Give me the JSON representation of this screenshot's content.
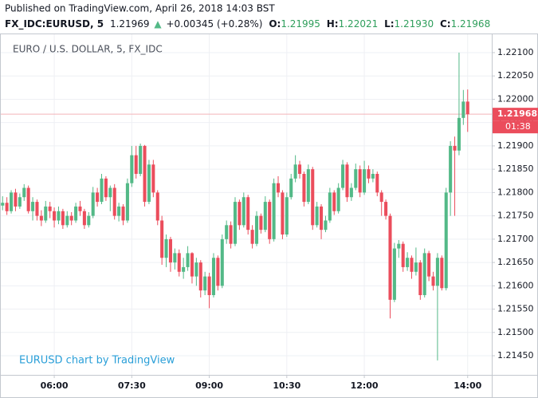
{
  "chart_data": {
    "type": "candlestick",
    "published": "Published on TradingView.com, April 26, 2018 14:03 BST",
    "symbol": "FX_IDC:EURUSD, 5",
    "last": "1.21969",
    "change_arrow": "▲",
    "change": "+0.00345 (+0.28%)",
    "info": [
      {
        "label": "O:",
        "value": "1.21995"
      },
      {
        "label": "H:",
        "value": "1.22021"
      },
      {
        "label": "L:",
        "value": "1.21930"
      },
      {
        "label": "C:",
        "value": "1.21968"
      }
    ],
    "title": "EURO / U.S. DOLLAR, 5, FX_IDC",
    "watermark": "EURUSD chart by TradingView",
    "countdown": "01:38",
    "up_color": "#53b987",
    "down_color": "#eb4d5c",
    "last_line_color": "#f3b3b9",
    "grid": true,
    "xlim": [
      "04:57",
      "14:28"
    ],
    "xticks": [
      "06:00",
      "07:30",
      "09:00",
      "10:30",
      "12:00",
      "14:00"
    ],
    "ylim": [
      1.21409,
      1.22141
    ],
    "yticks": [
      {
        "value": 1.2145,
        "label": "1.21450"
      },
      {
        "value": 1.215,
        "label": "1.21500"
      },
      {
        "value": 1.2155,
        "label": "1.21550"
      },
      {
        "value": 1.216,
        "label": "1.21600"
      },
      {
        "value": 1.2165,
        "label": "1.21650"
      },
      {
        "value": 1.217,
        "label": "1.21700"
      },
      {
        "value": 1.2175,
        "label": "1.21750"
      },
      {
        "value": 1.218,
        "label": "1.21800"
      },
      {
        "value": 1.2185,
        "label": "1.21850"
      },
      {
        "value": 1.219,
        "label": "1.21900"
      },
      {
        "value": 1.2195,
        "label": "1.21950"
      },
      {
        "value": 1.22,
        "label": "1.22000"
      },
      {
        "value": 1.2205,
        "label": "1.22050"
      },
      {
        "value": 1.221,
        "label": "1.22100"
      }
    ],
    "x": [
      "05:00",
      "05:05",
      "05:10",
      "05:15",
      "05:20",
      "05:25",
      "05:30",
      "05:35",
      "05:40",
      "05:45",
      "05:50",
      "05:55",
      "06:00",
      "06:05",
      "06:10",
      "06:15",
      "06:20",
      "06:25",
      "06:30",
      "06:35",
      "06:40",
      "06:45",
      "06:50",
      "06:55",
      "07:00",
      "07:05",
      "07:10",
      "07:15",
      "07:20",
      "07:25",
      "07:30",
      "07:35",
      "07:40",
      "07:45",
      "07:50",
      "07:55",
      "08:00",
      "08:05",
      "08:10",
      "08:15",
      "08:20",
      "08:25",
      "08:30",
      "08:35",
      "08:40",
      "08:45",
      "08:50",
      "08:55",
      "09:00",
      "09:05",
      "09:10",
      "09:15",
      "09:20",
      "09:25",
      "09:30",
      "09:35",
      "09:40",
      "09:45",
      "09:50",
      "09:55",
      "10:00",
      "10:05",
      "10:10",
      "10:15",
      "10:20",
      "10:25",
      "10:30",
      "10:35",
      "10:40",
      "10:45",
      "10:50",
      "10:55",
      "11:00",
      "11:05",
      "11:10",
      "11:15",
      "11:20",
      "11:25",
      "11:30",
      "11:35",
      "11:40",
      "11:45",
      "11:50",
      "11:55",
      "12:00",
      "12:05",
      "12:10",
      "12:15",
      "12:20",
      "12:25",
      "12:30",
      "12:35",
      "12:40",
      "12:45",
      "12:50",
      "12:55",
      "13:00",
      "13:05",
      "13:10",
      "13:15",
      "13:20",
      "13:25",
      "13:30",
      "13:35",
      "13:40",
      "13:45",
      "13:50",
      "13:55",
      "14:00"
    ],
    "ohlc": [
      [
        1.21772,
        1.21792,
        1.21762,
        1.21778
      ],
      [
        1.21778,
        1.2179,
        1.21752,
        1.2176
      ],
      [
        1.2176,
        1.21805,
        1.21755,
        1.218
      ],
      [
        1.218,
        1.21808,
        1.2176,
        1.2177
      ],
      [
        1.2177,
        1.21798,
        1.21765,
        1.2179
      ],
      [
        1.2179,
        1.21818,
        1.21782,
        1.2181
      ],
      [
        1.2181,
        1.21815,
        1.21755,
        1.2176
      ],
      [
        1.2176,
        1.2179,
        1.2174,
        1.2178
      ],
      [
        1.2178,
        1.21785,
        1.2174,
        1.2175
      ],
      [
        1.2175,
        1.21762,
        1.21728,
        1.2174
      ],
      [
        1.2174,
        1.21782,
        1.21735,
        1.2177
      ],
      [
        1.2177,
        1.2178,
        1.21745,
        1.2176
      ],
      [
        1.2176,
        1.21768,
        1.21725,
        1.2174
      ],
      [
        1.2174,
        1.2177,
        1.21732,
        1.2176
      ],
      [
        1.2176,
        1.21765,
        1.21722,
        1.2173
      ],
      [
        1.2173,
        1.2176,
        1.21725,
        1.2175
      ],
      [
        1.2175,
        1.21758,
        1.2173,
        1.2174
      ],
      [
        1.2174,
        1.21778,
        1.21735,
        1.2177
      ],
      [
        1.2177,
        1.21782,
        1.2175,
        1.2176
      ],
      [
        1.2176,
        1.21765,
        1.21722,
        1.2173
      ],
      [
        1.2173,
        1.21758,
        1.21725,
        1.2175
      ],
      [
        1.2175,
        1.21812,
        1.21745,
        1.218
      ],
      [
        1.218,
        1.2181,
        1.2177,
        1.2178
      ],
      [
        1.2178,
        1.2184,
        1.21775,
        1.2183
      ],
      [
        1.2183,
        1.21835,
        1.21782,
        1.2179
      ],
      [
        1.2179,
        1.21815,
        1.2176,
        1.2181
      ],
      [
        1.2181,
        1.21818,
        1.21742,
        1.2175
      ],
      [
        1.2175,
        1.21778,
        1.21738,
        1.2177
      ],
      [
        1.2177,
        1.21775,
        1.2173,
        1.2174
      ],
      [
        1.2174,
        1.2183,
        1.21735,
        1.2182
      ],
      [
        1.2182,
        1.219,
        1.21812,
        1.2188
      ],
      [
        1.2188,
        1.219,
        1.2183,
        1.2184
      ],
      [
        1.2184,
        1.21905,
        1.21835,
        1.219
      ],
      [
        1.219,
        1.21902,
        1.2177,
        1.2178
      ],
      [
        1.2178,
        1.2187,
        1.21775,
        1.2186
      ],
      [
        1.2186,
        1.2187,
        1.2179,
        1.218
      ],
      [
        1.218,
        1.21805,
        1.2173,
        1.2174
      ],
      [
        1.2174,
        1.2175,
        1.21645,
        1.2166
      ],
      [
        1.2166,
        1.2171,
        1.2164,
        1.217
      ],
      [
        1.217,
        1.21705,
        1.2163,
        1.2165
      ],
      [
        1.2165,
        1.2168,
        1.21635,
        1.2167
      ],
      [
        1.2167,
        1.21678,
        1.2162,
        1.2163
      ],
      [
        1.2163,
        1.2166,
        1.21615,
        1.2164
      ],
      [
        1.2164,
        1.21685,
        1.21632,
        1.2167
      ],
      [
        1.2167,
        1.21672,
        1.21605,
        1.2162
      ],
      [
        1.2162,
        1.2166,
        1.216,
        1.2165
      ],
      [
        1.2165,
        1.21655,
        1.21575,
        1.2159
      ],
      [
        1.2159,
        1.2163,
        1.2158,
        1.2162
      ],
      [
        1.2162,
        1.21628,
        1.21552,
        1.2158
      ],
      [
        1.2158,
        1.2167,
        1.21575,
        1.2166
      ],
      [
        1.2166,
        1.21665,
        1.2159,
        1.216
      ],
      [
        1.216,
        1.2171,
        1.21595,
        1.217
      ],
      [
        1.217,
        1.2174,
        1.2169,
        1.2173
      ],
      [
        1.2173,
        1.21738,
        1.2168,
        1.2169
      ],
      [
        1.2169,
        1.2179,
        1.21685,
        1.2178
      ],
      [
        1.2178,
        1.21785,
        1.2172,
        1.2173
      ],
      [
        1.2173,
        1.218,
        1.21725,
        1.2179
      ],
      [
        1.2179,
        1.21795,
        1.2171,
        1.2172
      ],
      [
        1.2172,
        1.2173,
        1.2168,
        1.2169
      ],
      [
        1.2169,
        1.2176,
        1.21685,
        1.2175
      ],
      [
        1.2175,
        1.21755,
        1.21712,
        1.2172
      ],
      [
        1.2172,
        1.21792,
        1.21715,
        1.2178
      ],
      [
        1.2178,
        1.21785,
        1.2169,
        1.217
      ],
      [
        1.217,
        1.2183,
        1.21695,
        1.2182
      ],
      [
        1.2182,
        1.21835,
        1.2179,
        1.218
      ],
      [
        1.218,
        1.21805,
        1.217,
        1.2171
      ],
      [
        1.2171,
        1.218,
        1.21705,
        1.2179
      ],
      [
        1.2179,
        1.2184,
        1.21785,
        1.2183
      ],
      [
        1.2183,
        1.2188,
        1.21822,
        1.2186
      ],
      [
        1.2186,
        1.21868,
        1.2183,
        1.2184
      ],
      [
        1.2184,
        1.21845,
        1.2177,
        1.2178
      ],
      [
        1.2178,
        1.2186,
        1.21775,
        1.2185
      ],
      [
        1.2185,
        1.21855,
        1.2172,
        1.2173
      ],
      [
        1.2173,
        1.2178,
        1.21725,
        1.2177
      ],
      [
        1.2177,
        1.21775,
        1.217,
        1.2172
      ],
      [
        1.2172,
        1.2175,
        1.21715,
        1.2174
      ],
      [
        1.2174,
        1.2181,
        1.21735,
        1.218
      ],
      [
        1.218,
        1.21805,
        1.21752,
        1.2176
      ],
      [
        1.2176,
        1.2182,
        1.21755,
        1.2181
      ],
      [
        1.2181,
        1.2187,
        1.21805,
        1.2186
      ],
      [
        1.2186,
        1.21865,
        1.2178,
        1.2179
      ],
      [
        1.2179,
        1.2182,
        1.21782,
        1.2181
      ],
      [
        1.2181,
        1.21862,
        1.21805,
        1.2185
      ],
      [
        1.2185,
        1.21858,
        1.2179,
        1.218
      ],
      [
        1.218,
        1.21868,
        1.21795,
        1.2185
      ],
      [
        1.2185,
        1.21858,
        1.2182,
        1.2183
      ],
      [
        1.2183,
        1.2185,
        1.21822,
        1.2184
      ],
      [
        1.2184,
        1.21845,
        1.21792,
        1.218
      ],
      [
        1.218,
        1.21805,
        1.2175,
        1.2178
      ],
      [
        1.2178,
        1.21785,
        1.21742,
        1.2175
      ],
      [
        1.2175,
        1.21755,
        1.2153,
        1.2157
      ],
      [
        1.2157,
        1.21692,
        1.21565,
        1.2168
      ],
      [
        1.2168,
        1.21698,
        1.2166,
        1.2169
      ],
      [
        1.2169,
        1.21695,
        1.2163,
        1.2164
      ],
      [
        1.2164,
        1.21672,
        1.21632,
        1.2166
      ],
      [
        1.2166,
        1.21665,
        1.21615,
        1.2163
      ],
      [
        1.2163,
        1.21682,
        1.21622,
        1.2165
      ],
      [
        1.2165,
        1.21655,
        1.2157,
        1.2158
      ],
      [
        1.2158,
        1.2168,
        1.21575,
        1.2167
      ],
      [
        1.2167,
        1.21675,
        1.2161,
        1.2162
      ],
      [
        1.2162,
        1.2163,
        1.2159,
        1.216
      ],
      [
        1.216,
        1.2167,
        1.2144,
        1.2166
      ],
      [
        1.2166,
        1.21665,
        1.2159,
        1.21595
      ],
      [
        1.21595,
        1.2181,
        1.2159,
        1.218
      ],
      [
        1.218,
        1.2191,
        1.2175,
        1.219
      ],
      [
        1.219,
        1.2192,
        1.2175,
        1.2189
      ],
      [
        1.2189,
        1.221,
        1.2188,
        1.2196
      ],
      [
        1.2196,
        1.2202,
        1.21945,
        1.21995
      ],
      [
        1.21995,
        1.22021,
        1.2193,
        1.21968
      ]
    ]
  }
}
